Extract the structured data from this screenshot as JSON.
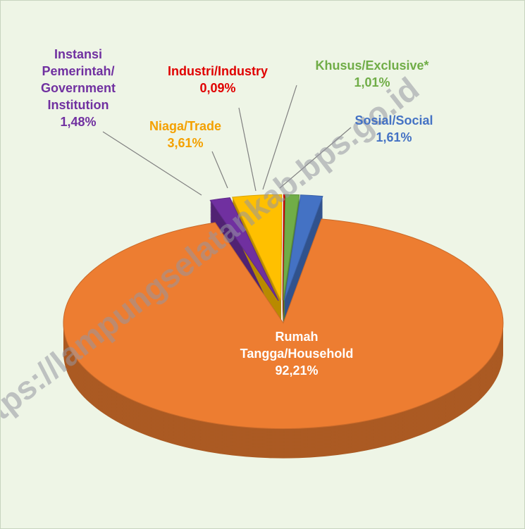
{
  "chart_data": {
    "type": "pie",
    "categories": [
      "Rumah Tangga/Household",
      "Instansi Pemerintah/ Government Institution",
      "Niaga/Trade",
      "Industri/Industry",
      "Khusus/Exclusive*",
      "Sosial/Social"
    ],
    "values": [
      92.21,
      1.48,
      3.61,
      0.09,
      1.01,
      1.61
    ],
    "value_labels": [
      "92,21%",
      "1,48%",
      "3,61%",
      "0,09%",
      "1,01%",
      "1,61%"
    ],
    "colors": [
      "#ed7d31",
      "#7030a0",
      "#ffc000",
      "#e00000",
      "#70ad47",
      "#4472c4"
    ],
    "label_colors": [
      "#ffffff",
      "#7030a0",
      "#f4a100",
      "#e00000",
      "#70ad47",
      "#4472c4"
    ]
  },
  "watermark": "https://lampungselatankab.bps.go.id"
}
